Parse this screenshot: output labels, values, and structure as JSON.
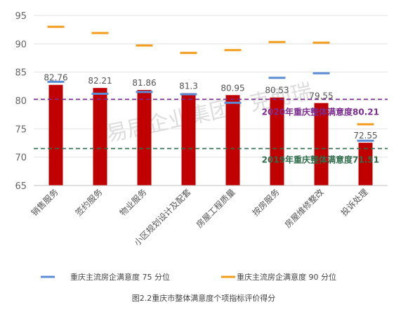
{
  "chart_data": {
    "type": "bar",
    "categories": [
      "销售服务",
      "签约服务",
      "物业服务",
      "小区规划设计及配套",
      "房屋工程质量",
      "按房服务",
      "房屋维修整改",
      "投诉处理"
    ],
    "series": [
      {
        "values": [
          82.76,
          82.21,
          81.86,
          81.3,
          80.95,
          80.53,
          79.55,
          72.55
        ],
        "color": "#c00000"
      },
      {
        "name": "重庆主流房企满意度 75 分位",
        "values": [
          83.3,
          81.2,
          81.5,
          81.1,
          79.6,
          84.0,
          84.8,
          72.9
        ],
        "color": "#5b8dd6"
      },
      {
        "name": "重庆主流房企满意度 90 分位",
        "values": [
          93.0,
          91.9,
          89.7,
          88.4,
          88.9,
          90.3,
          90.2,
          75.8
        ],
        "color": "#f39c1b"
      }
    ],
    "data_labels": [
      "82.76",
      "82.21",
      "81.86",
      "81.3",
      "80.95",
      "80.53",
      "79.55",
      "72.55"
    ],
    "reference_lines": [
      {
        "label": "2020年重庆整体满意度80.21",
        "value": 80.21,
        "color": "#7b2c8f"
      },
      {
        "label": "2019年重庆整体满意度71.51",
        "value": 71.51,
        "color": "#2e6e4a"
      }
    ],
    "ylim": [
      65,
      95
    ],
    "yticks": [
      65,
      70,
      75,
      80,
      85,
      90,
      95
    ],
    "grid": true,
    "legend_position": "bottom",
    "caption": "图2.2重庆市整体满意度个项指标评价得分",
    "watermark": "易居企业集团 · 克而瑞"
  }
}
